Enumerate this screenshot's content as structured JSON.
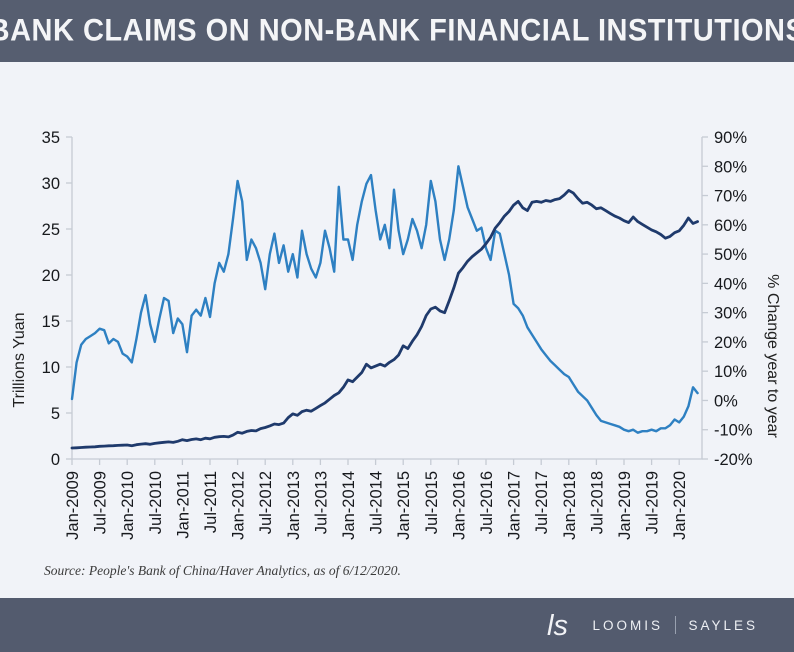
{
  "header": {
    "title": "BANK CLAIMS ON NON-BANK FINANCIAL INSTITUTIONS"
  },
  "source_note": "Source: People's Bank of China/Haver Analytics, as of 6/12/2020.",
  "footer": {
    "monogram": "ls",
    "brand_left": "LOOMIS",
    "brand_right": "SAYLES"
  },
  "colors": {
    "bar_background": "#565e70",
    "page_background": "#f1f3f8",
    "claims_line": "#1f3a6c",
    "pct_change_line": "#2e80c2",
    "axis_line": "#c6cbd4",
    "tick_text": "#17191d"
  },
  "chart_data": {
    "type": "line",
    "title": "BANK CLAIMS ON NON-BANK FINANCIAL INSTITUTIONS",
    "x_unit": "month",
    "x_start": "Jan-2009",
    "x_end": "May-2020",
    "x_tick_labels": [
      "Jan-2009",
      "Jul-2009",
      "Jan-2010",
      "Jul-2010",
      "Jan-2011",
      "Jul-2011",
      "Jan-2012",
      "Jul-2012",
      "Jan-2013",
      "Jul-2013",
      "Jan-2014",
      "Jul-2014",
      "Jan-2015",
      "Jul-2015",
      "Jan-2016",
      "Jul-2016",
      "Jan-2017",
      "Jul-2017",
      "Jan-2018",
      "Jul-2018",
      "Jan-2019",
      "Jul-2019",
      "Jan-2020"
    ],
    "left_axis": {
      "label": "Trillions Yuan",
      "min": 0,
      "max": 35,
      "tick_step": 5,
      "tick_labels": [
        "35",
        "30",
        "25",
        "20",
        "15",
        "10",
        "5",
        "0"
      ]
    },
    "right_axis": {
      "label": "% Change year to year",
      "min": -20,
      "max": 90,
      "tick_step": 10,
      "tick_labels": [
        "90%",
        "80%",
        "70%",
        "60%",
        "50%",
        "40%",
        "30%",
        "20%",
        "10%",
        "0%",
        "-10%",
        "-20%"
      ]
    },
    "grid": false,
    "legend": "none",
    "series": [
      {
        "name": "Bank claims on non-bank financial institutions (trillions yuan)",
        "axis": "left",
        "color": "#1f3a6c",
        "values": [
          1.2,
          1.22,
          1.25,
          1.28,
          1.3,
          1.33,
          1.38,
          1.4,
          1.43,
          1.45,
          1.48,
          1.5,
          1.52,
          1.45,
          1.55,
          1.62,
          1.66,
          1.6,
          1.7,
          1.76,
          1.82,
          1.86,
          1.8,
          1.92,
          2.1,
          2.0,
          2.12,
          2.18,
          2.1,
          2.26,
          2.2,
          2.36,
          2.42,
          2.46,
          2.4,
          2.6,
          2.9,
          2.8,
          3.0,
          3.1,
          3.05,
          3.3,
          3.42,
          3.6,
          3.8,
          3.74,
          3.9,
          4.5,
          4.9,
          4.75,
          5.15,
          5.3,
          5.2,
          5.5,
          5.8,
          6.1,
          6.5,
          6.9,
          7.2,
          7.8,
          8.6,
          8.4,
          8.9,
          9.4,
          10.3,
          9.9,
          10.1,
          10.3,
          10.1,
          10.5,
          10.8,
          11.3,
          12.3,
          12.0,
          12.8,
          13.5,
          14.4,
          15.6,
          16.3,
          16.5,
          16.1,
          15.9,
          17.2,
          18.6,
          20.2,
          20.8,
          21.5,
          22.0,
          22.4,
          22.8,
          23.4,
          24.1,
          25.1,
          25.7,
          26.4,
          26.9,
          27.6,
          28.0,
          27.3,
          27.0,
          27.9,
          28.0,
          27.9,
          28.1,
          28.0,
          28.2,
          28.3,
          28.7,
          29.2,
          28.9,
          28.3,
          27.8,
          27.9,
          27.6,
          27.2,
          27.3,
          27.0,
          26.7,
          26.4,
          26.2,
          25.9,
          25.7,
          26.3,
          25.8,
          25.5,
          25.2,
          24.9,
          24.7,
          24.4,
          24.0,
          24.2,
          24.6,
          24.8,
          25.4,
          26.2,
          25.6,
          25.8
        ]
      },
      {
        "name": "% change year to year",
        "axis": "right",
        "color": "#2e80c2",
        "values": [
          0.5,
          13,
          19,
          21,
          22,
          23,
          24.5,
          24,
          19.5,
          21,
          20,
          16,
          15,
          13,
          21,
          30,
          36,
          26,
          20,
          28,
          35,
          34,
          23,
          28,
          26,
          16.5,
          29,
          31,
          29,
          35,
          28.5,
          40,
          47,
          44,
          50,
          62,
          75,
          68,
          48,
          55,
          52,
          47,
          38,
          50,
          57,
          47,
          53,
          44,
          50,
          42,
          58,
          50,
          45,
          42,
          47,
          58,
          52,
          44,
          73,
          55,
          55,
          48,
          60,
          68,
          74,
          77,
          65,
          55,
          60,
          52,
          72,
          58,
          50,
          55,
          62,
          58,
          52,
          60,
          75,
          68,
          55,
          48,
          55,
          65,
          80,
          73,
          66,
          62,
          58,
          59,
          52,
          48,
          58,
          57,
          50,
          43,
          33,
          31.5,
          29,
          25,
          22.5,
          20,
          17.5,
          15.5,
          13.5,
          12,
          10.5,
          9,
          8,
          5.5,
          3,
          1.5,
          0,
          -2.5,
          -5,
          -7,
          -7.5,
          -8,
          -8.5,
          -9,
          -10,
          -10.5,
          -10,
          -11,
          -10.5,
          -10.5,
          -10,
          -10.5,
          -9.5,
          -9.5,
          -8.5,
          -6.5,
          -7.5,
          -5.5,
          -2,
          4.5,
          2.5
        ]
      }
    ]
  }
}
